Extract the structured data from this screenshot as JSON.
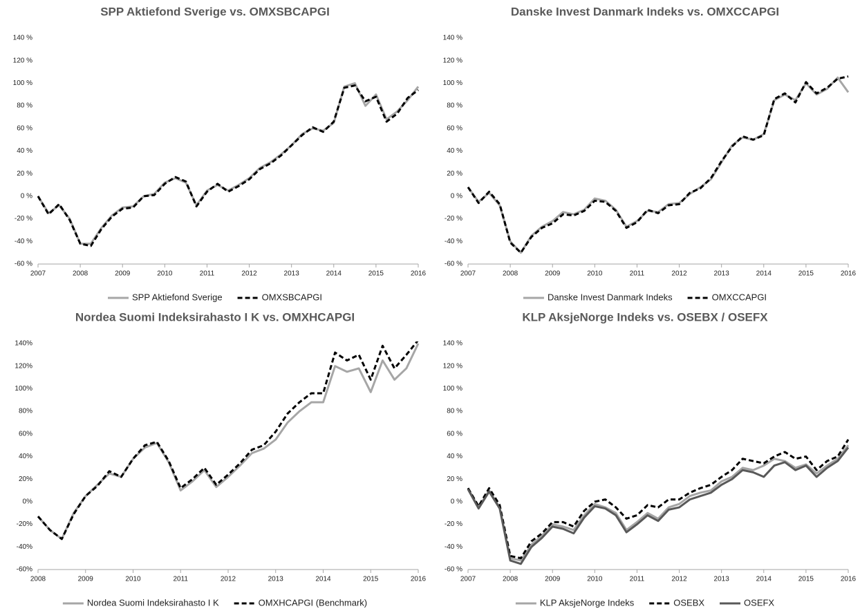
{
  "chart_data": [
    {
      "type": "line",
      "title": "SPP Aktiefond Sverige vs. OMXSBCAPGI",
      "legend": "bottom",
      "grid": false,
      "x": [
        2007,
        2007.25,
        2007.5,
        2007.75,
        2008,
        2008.25,
        2008.5,
        2008.75,
        2009,
        2009.25,
        2009.5,
        2009.75,
        2010,
        2010.25,
        2010.5,
        2010.75,
        2011,
        2011.25,
        2011.5,
        2011.75,
        2012,
        2012.25,
        2012.5,
        2012.75,
        2013,
        2013.25,
        2013.5,
        2013.75,
        2014,
        2014.25,
        2014.5,
        2014.75,
        2015,
        2015.25,
        2015.5,
        2015.75,
        2016
      ],
      "xlim": [
        2007,
        2016
      ],
      "xticks": [
        2007,
        2008,
        2009,
        2010,
        2011,
        2012,
        2013,
        2014,
        2015,
        2016
      ],
      "ylim": [
        -60,
        140
      ],
      "yticks": [
        {
          "value": -60,
          "label": "-60 %"
        },
        {
          "value": -40,
          "label": "-40 %"
        },
        {
          "value": -20,
          "label": "-20 %"
        },
        {
          "value": 0,
          "label": "0 %"
        },
        {
          "value": 20,
          "label": "20 %"
        },
        {
          "value": 40,
          "label": "40 %"
        },
        {
          "value": 60,
          "label": "60 %"
        },
        {
          "value": 80,
          "label": "80 %"
        },
        {
          "value": 100,
          "label": "100 %"
        },
        {
          "value": 120,
          "label": "120 %"
        },
        {
          "value": 140,
          "label": "140 %"
        }
      ],
      "series": [
        {
          "name": "SPP Aktiefond Sverige",
          "color": "#a6a6a6",
          "style": "solid",
          "values": [
            0,
            -15,
            -8,
            -20,
            -42,
            -42,
            -28,
            -17,
            -10,
            -9,
            0,
            2,
            12,
            16,
            12,
            -8,
            5,
            10,
            5,
            10,
            16,
            25,
            30,
            37,
            45,
            55,
            60,
            58,
            65,
            97,
            100,
            80,
            90,
            68,
            75,
            85,
            97
          ]
        },
        {
          "name": "OMXSBCAPGI",
          "color": "#000000",
          "style": "dashed",
          "values": [
            0,
            -16,
            -7,
            -21,
            -42,
            -44,
            -29,
            -18,
            -11,
            -10,
            0,
            1,
            11,
            17,
            13,
            -9,
            4,
            11,
            4,
            9,
            15,
            24,
            29,
            36,
            45,
            54,
            61,
            57,
            66,
            96,
            98,
            84,
            88,
            66,
            73,
            87,
            94
          ]
        }
      ]
    },
    {
      "type": "line",
      "title": "Danske Invest Danmark Indeks vs. OMXCCAPGI",
      "legend": "bottom",
      "grid": false,
      "x": [
        2007,
        2007.25,
        2007.5,
        2007.75,
        2008,
        2008.25,
        2008.5,
        2008.75,
        2009,
        2009.25,
        2009.5,
        2009.75,
        2010,
        2010.25,
        2010.5,
        2010.75,
        2011,
        2011.25,
        2011.5,
        2011.75,
        2012,
        2012.25,
        2012.5,
        2012.75,
        2013,
        2013.25,
        2013.5,
        2013.75,
        2014,
        2014.25,
        2014.5,
        2014.75,
        2015,
        2015.25,
        2015.5,
        2015.75,
        2016
      ],
      "xlim": [
        2007,
        2016
      ],
      "xticks": [
        2007,
        2008,
        2009,
        2010,
        2011,
        2012,
        2013,
        2014,
        2015,
        2016
      ],
      "ylim": [
        -60,
        140
      ],
      "yticks": [
        {
          "value": -60,
          "label": "-60 %"
        },
        {
          "value": -40,
          "label": "-40 %"
        },
        {
          "value": -20,
          "label": "-20 %"
        },
        {
          "value": 0,
          "label": "0 %"
        },
        {
          "value": 20,
          "label": "20 %"
        },
        {
          "value": 40,
          "label": "40 %"
        },
        {
          "value": 60,
          "label": "60 %"
        },
        {
          "value": 80,
          "label": "80 %"
        },
        {
          "value": 100,
          "label": "100 %"
        },
        {
          "value": 120,
          "label": "120 %"
        },
        {
          "value": 140,
          "label": "140 %"
        }
      ],
      "series": [
        {
          "name": "Danske Invest Danmark Indeks",
          "color": "#a6a6a6",
          "style": "solid",
          "values": [
            8,
            -5,
            3,
            -8,
            -40,
            -50,
            -35,
            -27,
            -22,
            -14,
            -16,
            -12,
            -2,
            -4,
            -12,
            -27,
            -22,
            -13,
            -14,
            -7,
            -6,
            2,
            8,
            15,
            30,
            45,
            52,
            50,
            55,
            85,
            90,
            85,
            100,
            90,
            95,
            105,
            92
          ]
        },
        {
          "name": "OMXCCAPGI",
          "color": "#000000",
          "style": "dashed",
          "values": [
            8,
            -6,
            4,
            -7,
            -41,
            -50,
            -36,
            -28,
            -24,
            -16,
            -17,
            -13,
            -4,
            -5,
            -13,
            -28,
            -23,
            -12,
            -15,
            -8,
            -7,
            3,
            7,
            16,
            31,
            44,
            53,
            50,
            54,
            86,
            91,
            83,
            101,
            91,
            96,
            104,
            106
          ]
        }
      ]
    },
    {
      "type": "line",
      "title": "Nordea Suomi Indeksirahasto I K vs. OMXHCAPGI",
      "legend": "bottom",
      "grid": false,
      "x": [
        2008,
        2008.25,
        2008.5,
        2008.75,
        2009,
        2009.25,
        2009.5,
        2009.75,
        2010,
        2010.25,
        2010.5,
        2010.75,
        2011,
        2011.25,
        2011.5,
        2011.75,
        2012,
        2012.25,
        2012.5,
        2012.75,
        2013,
        2013.25,
        2013.5,
        2013.75,
        2014,
        2014.25,
        2014.5,
        2014.75,
        2015,
        2015.25,
        2015.5,
        2015.75,
        2016
      ],
      "xlim": [
        2008,
        2016
      ],
      "xticks": [
        2008,
        2009,
        2010,
        2011,
        2012,
        2013,
        2014,
        2015,
        2016
      ],
      "ylim": [
        -60,
        140
      ],
      "yticks": [
        {
          "value": -60,
          "label": "-60%"
        },
        {
          "value": -40,
          "label": "-40%"
        },
        {
          "value": -20,
          "label": "-20%"
        },
        {
          "value": 0,
          "label": "0%"
        },
        {
          "value": 20,
          "label": "20%"
        },
        {
          "value": 40,
          "label": "40%"
        },
        {
          "value": 60,
          "label": "60%"
        },
        {
          "value": 80,
          "label": "80%"
        },
        {
          "value": 100,
          "label": "100%"
        },
        {
          "value": 120,
          "label": "120%"
        },
        {
          "value": 140,
          "label": "140%"
        }
      ],
      "series": [
        {
          "name": "Nordea Suomi Indeksirahasto I K",
          "color": "#a6a6a6",
          "style": "solid",
          "values": [
            -13,
            -25,
            -33,
            -10,
            5,
            15,
            25,
            22,
            38,
            48,
            52,
            35,
            10,
            18,
            28,
            13,
            22,
            32,
            43,
            47,
            55,
            70,
            80,
            88,
            88,
            120,
            115,
            118,
            97,
            125,
            108,
            118,
            140
          ]
        },
        {
          "name": "OMXHCAPGI (Benchmark)",
          "color": "#000000",
          "style": "dashed",
          "values": [
            -13,
            -25,
            -33,
            -11,
            5,
            14,
            27,
            22,
            38,
            50,
            53,
            36,
            12,
            20,
            30,
            15,
            24,
            34,
            46,
            50,
            62,
            78,
            88,
            96,
            96,
            132,
            125,
            130,
            108,
            138,
            118,
            130,
            143
          ]
        }
      ]
    },
    {
      "type": "line",
      "title": "KLP AksjeNorge Indeks vs. OSEBX / OSEFX",
      "legend": "bottom",
      "grid": false,
      "x": [
        2007,
        2007.25,
        2007.5,
        2007.75,
        2008,
        2008.25,
        2008.5,
        2008.75,
        2009,
        2009.25,
        2009.5,
        2009.75,
        2010,
        2010.25,
        2010.5,
        2010.75,
        2011,
        2011.25,
        2011.5,
        2011.75,
        2012,
        2012.25,
        2012.5,
        2012.75,
        2013,
        2013.25,
        2013.5,
        2013.75,
        2014,
        2014.25,
        2014.5,
        2014.75,
        2015,
        2015.25,
        2015.5,
        2015.75,
        2016
      ],
      "xlim": [
        2007,
        2016
      ],
      "xticks": [
        2007,
        2008,
        2009,
        2010,
        2011,
        2012,
        2013,
        2014,
        2015,
        2016
      ],
      "ylim": [
        -60,
        140
      ],
      "yticks": [
        {
          "value": -60,
          "label": "-60 %"
        },
        {
          "value": -40,
          "label": "-40 %"
        },
        {
          "value": -20,
          "label": "-20 %"
        },
        {
          "value": 0,
          "label": "0 %"
        },
        {
          "value": 20,
          "label": "20 %"
        },
        {
          "value": 40,
          "label": "40 %"
        },
        {
          "value": 60,
          "label": "60 %"
        },
        {
          "value": 80,
          "label": "80 %"
        },
        {
          "value": 100,
          "label": "100 %"
        },
        {
          "value": 120,
          "label": "120 %"
        },
        {
          "value": 140,
          "label": "140 %"
        }
      ],
      "series": [
        {
          "name": "KLP AksjeNorge Indeks",
          "color": "#a6a6a6",
          "style": "solid",
          "values": [
            12,
            -5,
            10,
            -5,
            -50,
            -52,
            -38,
            -30,
            -20,
            -22,
            -25,
            -12,
            -2,
            -5,
            -10,
            -25,
            -18,
            -10,
            -15,
            -5,
            -2,
            5,
            8,
            10,
            18,
            22,
            30,
            28,
            32,
            38,
            36,
            30,
            33,
            25,
            32,
            38,
            50
          ]
        },
        {
          "name": "OSEBX",
          "color": "#000000",
          "style": "dashed",
          "values": [
            12,
            -4,
            12,
            -3,
            -48,
            -50,
            -35,
            -28,
            -18,
            -18,
            -22,
            -8,
            0,
            2,
            -5,
            -15,
            -12,
            -3,
            -5,
            2,
            2,
            8,
            12,
            15,
            22,
            28,
            38,
            36,
            34,
            40,
            44,
            38,
            40,
            28,
            36,
            40,
            55
          ]
        },
        {
          "name": "OSEFX",
          "color": "#595959",
          "style": "solid",
          "values": [
            11,
            -6,
            9,
            -6,
            -52,
            -55,
            -40,
            -32,
            -22,
            -24,
            -28,
            -14,
            -4,
            -6,
            -12,
            -27,
            -20,
            -12,
            -17,
            -7,
            -5,
            2,
            5,
            8,
            15,
            20,
            28,
            26,
            22,
            32,
            35,
            28,
            32,
            22,
            30,
            36,
            48
          ]
        }
      ]
    }
  ]
}
